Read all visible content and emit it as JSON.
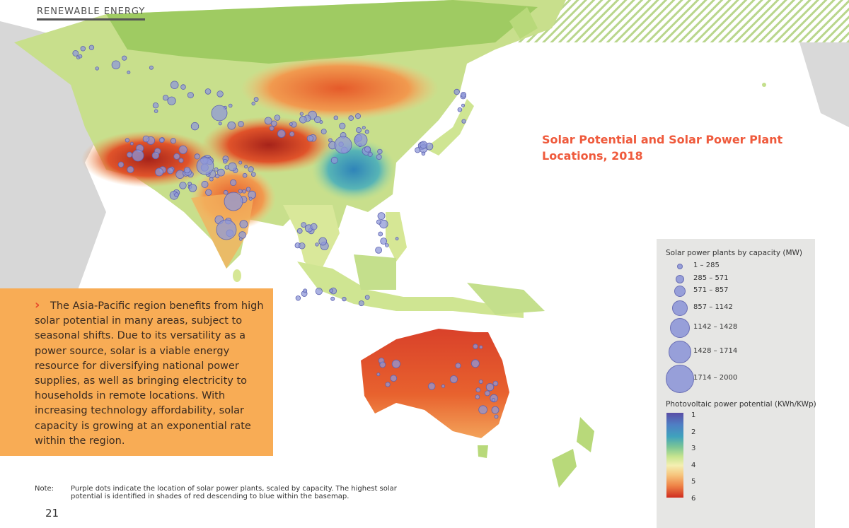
{
  "header": {
    "section_label": "RENEWABLE ENERGY"
  },
  "title": "Solar Potential and Solar Power Plant Locations, 2018",
  "textbox": {
    "body": "The Asia-Pacific region benefits from high solar potential in many areas, subject to seasonal shifts. Due to its versatility as a power source, solar is a viable energy resource for diversifying national power supplies, as well as bringing electricity to households in remote locations. With increasing technology affordability, solar capacity is growing at an exponential rate within the region."
  },
  "note": {
    "label": "Note:",
    "text": "Purple dots indicate the location of solar power plants, scaled by capacity. The highest solar potential is identified in shades of red descending to blue within the basemap."
  },
  "page_number": "21",
  "legend": {
    "capacity_title": "Solar power plants by capacity (MW)",
    "capacity_classes": [
      "1 – 285",
      "285 – 571",
      "571 – 857",
      "857 – 1142",
      "1142 – 1428",
      "1428 – 1714",
      "1714 – 2000"
    ],
    "potential_title": "Photovoltaic power potential (KWh/KWp)",
    "potential_ticks": [
      "1",
      "2",
      "3",
      "4",
      "5",
      "6"
    ]
  },
  "colors": {
    "title": "#ef5a3c",
    "textbox_bg": "#f8ac55",
    "plant_fill": "#8f98d8",
    "plant_stroke": "#5e63b0",
    "potential_high": "#cf2d1f",
    "potential_low": "#4f7fc4"
  }
}
